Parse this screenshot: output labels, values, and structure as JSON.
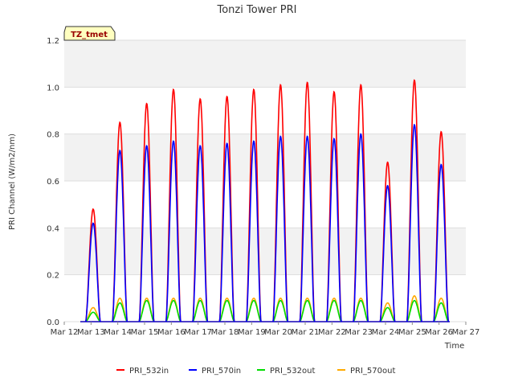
{
  "chart_data": {
    "type": "line",
    "title": "Tonzi Tower PRI",
    "xlabel": "Time",
    "ylabel": "PRI Channel (W/m2/nm)",
    "badge": "TZ_tmet",
    "xlim": [
      12,
      27
    ],
    "ylim": [
      0,
      1.2
    ],
    "yticks": [
      0.0,
      0.2,
      0.4,
      0.6,
      0.8,
      1.0,
      1.2
    ],
    "ytick_labels": [
      "0.0",
      "0.2",
      "0.4",
      "0.6",
      "0.8",
      "1.0",
      "1.2"
    ],
    "xticks": [
      12,
      13,
      14,
      15,
      16,
      17,
      18,
      19,
      20,
      21,
      22,
      23,
      24,
      25,
      26,
      27
    ],
    "xtick_labels": [
      "Mar 12",
      "Mar 13",
      "Mar 14",
      "Mar 15",
      "Mar 16",
      "Mar 17",
      "Mar 18",
      "Mar 19",
      "Mar 20",
      "Mar 21",
      "Mar 22",
      "Mar 23",
      "Mar 24",
      "Mar 25",
      "Mar 26",
      "Mar 27"
    ],
    "grid": true,
    "legend_position": "bottom",
    "series": [
      {
        "name": "PRI_532in",
        "color": "#ff0000",
        "daily_peaks": [
          {
            "day": 13,
            "peak": 0.48
          },
          {
            "day": 14,
            "peak": 0.85
          },
          {
            "day": 15,
            "peak": 0.93
          },
          {
            "day": 16,
            "peak": 0.99
          },
          {
            "day": 17,
            "peak": 0.95
          },
          {
            "day": 18,
            "peak": 0.96
          },
          {
            "day": 19,
            "peak": 0.99
          },
          {
            "day": 20,
            "peak": 1.01
          },
          {
            "day": 21,
            "peak": 1.02
          },
          {
            "day": 22,
            "peak": 0.98
          },
          {
            "day": 23,
            "peak": 1.01
          },
          {
            "day": 24,
            "peak": 0.68
          },
          {
            "day": 25,
            "peak": 1.03
          },
          {
            "day": 26,
            "peak": 0.81
          }
        ]
      },
      {
        "name": "PRI_570in",
        "color": "#0000ff",
        "daily_peaks": [
          {
            "day": 13,
            "peak": 0.42
          },
          {
            "day": 14,
            "peak": 0.73
          },
          {
            "day": 15,
            "peak": 0.75
          },
          {
            "day": 16,
            "peak": 0.77
          },
          {
            "day": 17,
            "peak": 0.75
          },
          {
            "day": 18,
            "peak": 0.76
          },
          {
            "day": 19,
            "peak": 0.77
          },
          {
            "day": 20,
            "peak": 0.79
          },
          {
            "day": 21,
            "peak": 0.79
          },
          {
            "day": 22,
            "peak": 0.78
          },
          {
            "day": 23,
            "peak": 0.8
          },
          {
            "day": 24,
            "peak": 0.58
          },
          {
            "day": 25,
            "peak": 0.84
          },
          {
            "day": 26,
            "peak": 0.67
          }
        ]
      },
      {
        "name": "PRI_532out",
        "color": "#00dd00",
        "daily_peaks": [
          {
            "day": 13,
            "peak": 0.04
          },
          {
            "day": 14,
            "peak": 0.08
          },
          {
            "day": 15,
            "peak": 0.09
          },
          {
            "day": 16,
            "peak": 0.09
          },
          {
            "day": 17,
            "peak": 0.09
          },
          {
            "day": 18,
            "peak": 0.09
          },
          {
            "day": 19,
            "peak": 0.09
          },
          {
            "day": 20,
            "peak": 0.09
          },
          {
            "day": 21,
            "peak": 0.09
          },
          {
            "day": 22,
            "peak": 0.09
          },
          {
            "day": 23,
            "peak": 0.09
          },
          {
            "day": 24,
            "peak": 0.06
          },
          {
            "day": 25,
            "peak": 0.09
          },
          {
            "day": 26,
            "peak": 0.08
          }
        ]
      },
      {
        "name": "PRI_570out",
        "color": "#ffaa00",
        "daily_peaks": [
          {
            "day": 13,
            "peak": 0.06
          },
          {
            "day": 14,
            "peak": 0.1
          },
          {
            "day": 15,
            "peak": 0.1
          },
          {
            "day": 16,
            "peak": 0.1
          },
          {
            "day": 17,
            "peak": 0.1
          },
          {
            "day": 18,
            "peak": 0.1
          },
          {
            "day": 19,
            "peak": 0.1
          },
          {
            "day": 20,
            "peak": 0.1
          },
          {
            "day": 21,
            "peak": 0.1
          },
          {
            "day": 22,
            "peak": 0.1
          },
          {
            "day": 23,
            "peak": 0.1
          },
          {
            "day": 24,
            "peak": 0.08
          },
          {
            "day": 25,
            "peak": 0.11
          },
          {
            "day": 26,
            "peak": 0.1
          }
        ]
      }
    ]
  }
}
